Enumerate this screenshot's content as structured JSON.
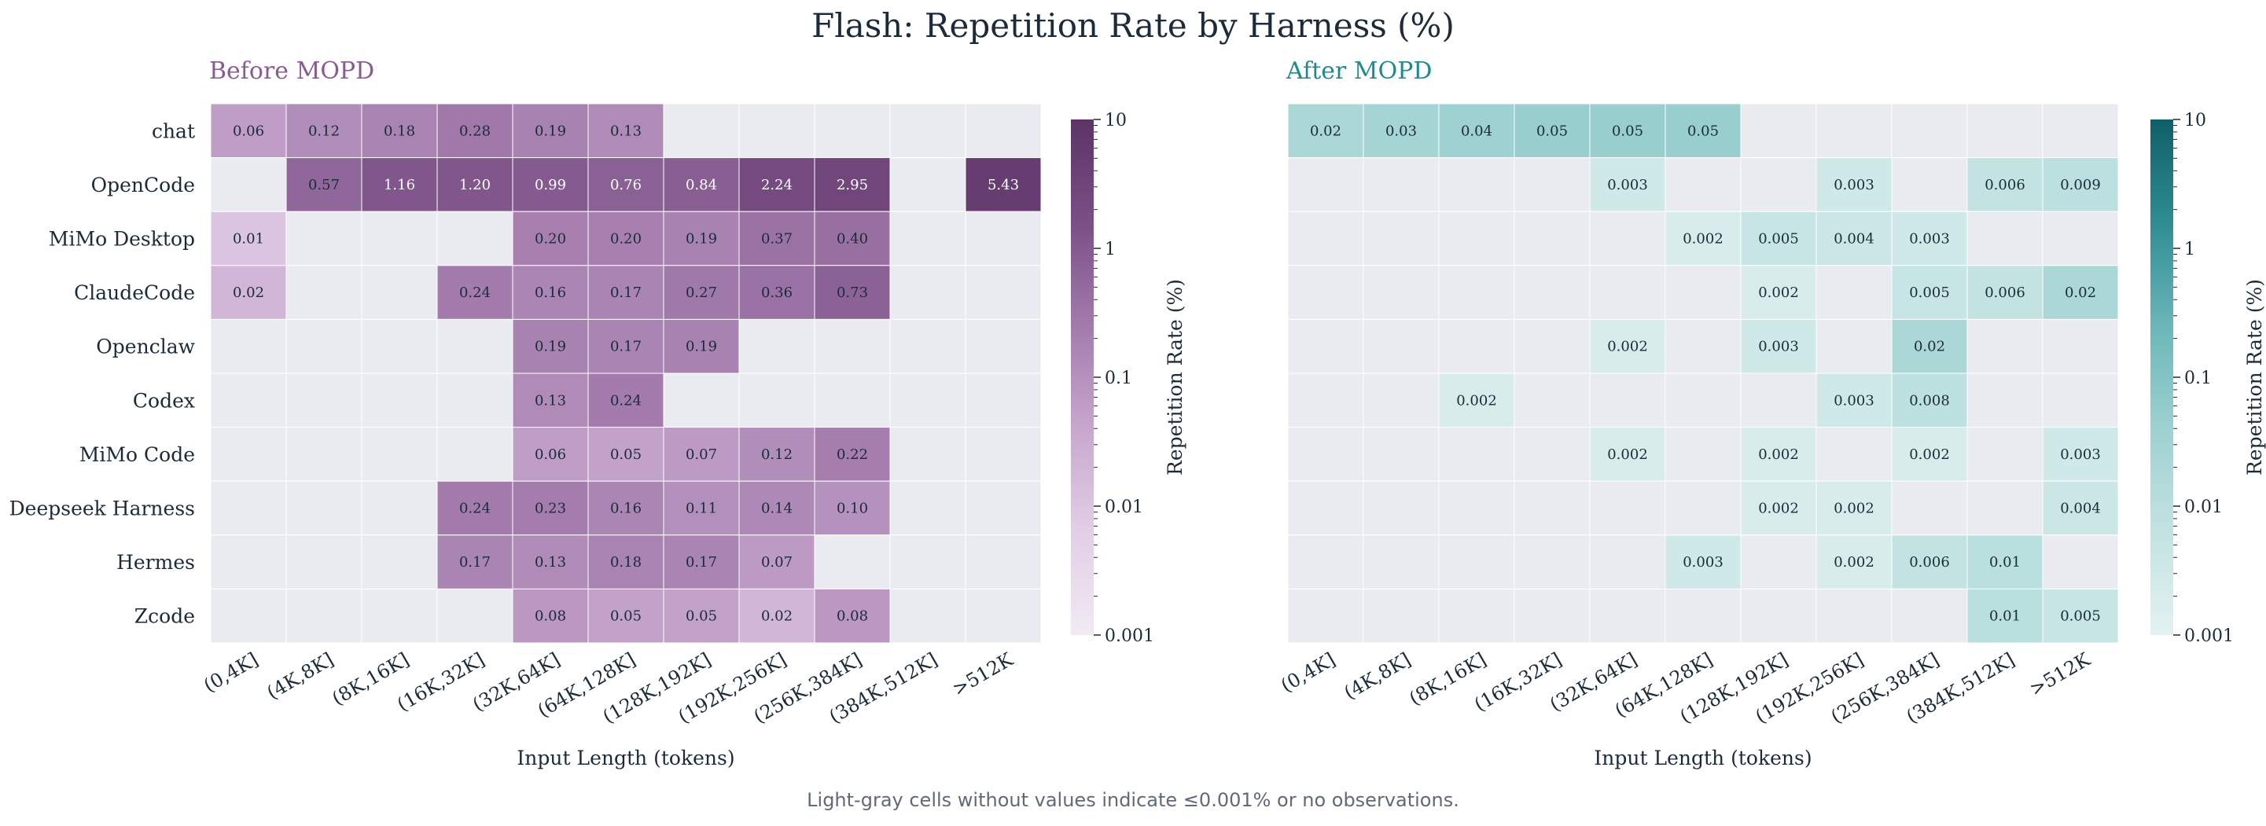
{
  "title": "Flash: Repetition Rate by Harness (%)",
  "footnote": "Light-gray cells without values indicate ≤0.001% or no observations.",
  "colors": {
    "empty_cell": "#eaebf0",
    "cell_border": "#ffffff",
    "before_title": "#8a5a92",
    "after_title": "#1f8a8e",
    "before_scale": [
      "#f1eaf3",
      "#e2cfe6",
      "#c8a7ce",
      "#a27bac",
      "#7a4f86",
      "#5c3466"
    ],
    "after_scale": [
      "#e3f2f1",
      "#c2e3e2",
      "#9ed1d1",
      "#6bb6b8",
      "#2e8d92",
      "#0f5f66"
    ],
    "text": "#1c2b3a"
  },
  "chart_data": [
    {
      "type": "heatmap",
      "title": "Before MOPD",
      "xlabel": "Input Length (tokens)",
      "ylabel": "",
      "colorbar_label": "Repetition Rate (%)",
      "scale": "log",
      "vmin": 0.001,
      "vmax": 10,
      "colorbar_ticks": [
        "10",
        "1",
        "0.1",
        "0.01",
        "0.001"
      ],
      "x": [
        "(0,4K]",
        "(4K,8K]",
        "(8K,16K]",
        "(16K,32K]",
        "(32K,64K]",
        "(64K,128K]",
        "(128K,192K]",
        "(192K,256K]",
        "(256K,384K]",
        "(384K,512K]",
        ">512K"
      ],
      "y": [
        "chat",
        "OpenCode",
        "MiMo Desktop",
        "ClaudeCode",
        "Openclaw",
        "Codex",
        "MiMo Code",
        "Deepseek Harness",
        "Hermes",
        "Zcode"
      ],
      "values": [
        [
          "0.06",
          "0.12",
          "0.18",
          "0.28",
          "0.19",
          "0.13",
          null,
          null,
          null,
          null,
          null
        ],
        [
          null,
          "0.57",
          "1.16",
          "1.20",
          "0.99",
          "0.76",
          "0.84",
          "2.24",
          "2.95",
          null,
          "5.43"
        ],
        [
          "0.01",
          null,
          null,
          null,
          "0.20",
          "0.20",
          "0.19",
          "0.37",
          "0.40",
          null,
          null
        ],
        [
          "0.02",
          null,
          null,
          "0.24",
          "0.16",
          "0.17",
          "0.27",
          "0.36",
          "0.73",
          null,
          null
        ],
        [
          null,
          null,
          null,
          null,
          "0.19",
          "0.17",
          "0.19",
          null,
          null,
          null,
          null
        ],
        [
          null,
          null,
          null,
          null,
          "0.13",
          "0.24",
          null,
          null,
          null,
          null,
          null
        ],
        [
          null,
          null,
          null,
          null,
          "0.06",
          "0.05",
          "0.07",
          "0.12",
          "0.22",
          null,
          null
        ],
        [
          null,
          null,
          null,
          "0.24",
          "0.23",
          "0.16",
          "0.11",
          "0.14",
          "0.10",
          null,
          null
        ],
        [
          null,
          null,
          null,
          "0.17",
          "0.13",
          "0.18",
          "0.17",
          "0.07",
          null,
          null,
          null
        ],
        [
          null,
          null,
          null,
          null,
          "0.08",
          "0.05",
          "0.05",
          "0.02",
          "0.08",
          null,
          null
        ]
      ]
    },
    {
      "type": "heatmap",
      "title": "After MOPD",
      "xlabel": "Input Length (tokens)",
      "ylabel": "",
      "colorbar_label": "Repetition Rate (%)",
      "scale": "log",
      "vmin": 0.001,
      "vmax": 10,
      "colorbar_ticks": [
        "10",
        "1",
        "0.1",
        "0.01",
        "0.001"
      ],
      "x": [
        "(0,4K]",
        "(4K,8K]",
        "(8K,16K]",
        "(16K,32K]",
        "(32K,64K]",
        "(64K,128K]",
        "(128K,192K]",
        "(192K,256K]",
        "(256K,384K]",
        "(384K,512K]",
        ">512K"
      ],
      "y": [
        "chat",
        "OpenCode",
        "MiMo Desktop",
        "ClaudeCode",
        "Openclaw",
        "Codex",
        "MiMo Code",
        "Deepseek Harness",
        "Hermes",
        "Zcode"
      ],
      "values": [
        [
          "0.02",
          "0.03",
          "0.04",
          "0.05",
          "0.05",
          "0.05",
          null,
          null,
          null,
          null,
          null
        ],
        [
          null,
          null,
          null,
          null,
          "0.003",
          null,
          null,
          "0.003",
          null,
          "0.006",
          "0.009"
        ],
        [
          null,
          null,
          null,
          null,
          null,
          "0.002",
          "0.005",
          "0.004",
          "0.003",
          null,
          null
        ],
        [
          null,
          null,
          null,
          null,
          null,
          null,
          "0.002",
          null,
          "0.005",
          "0.006",
          "0.02"
        ],
        [
          null,
          null,
          null,
          null,
          "0.002",
          null,
          "0.003",
          null,
          "0.02",
          null,
          null
        ],
        [
          null,
          null,
          "0.002",
          null,
          null,
          null,
          null,
          "0.003",
          "0.008",
          null,
          null
        ],
        [
          null,
          null,
          null,
          null,
          "0.002",
          null,
          "0.002",
          null,
          "0.002",
          null,
          "0.003"
        ],
        [
          null,
          null,
          null,
          null,
          null,
          null,
          "0.002",
          "0.002",
          null,
          null,
          "0.004"
        ],
        [
          null,
          null,
          null,
          null,
          null,
          "0.003",
          null,
          "0.002",
          "0.006",
          "0.01",
          null
        ],
        [
          null,
          null,
          null,
          null,
          null,
          null,
          null,
          null,
          null,
          "0.01",
          "0.005"
        ]
      ]
    }
  ]
}
